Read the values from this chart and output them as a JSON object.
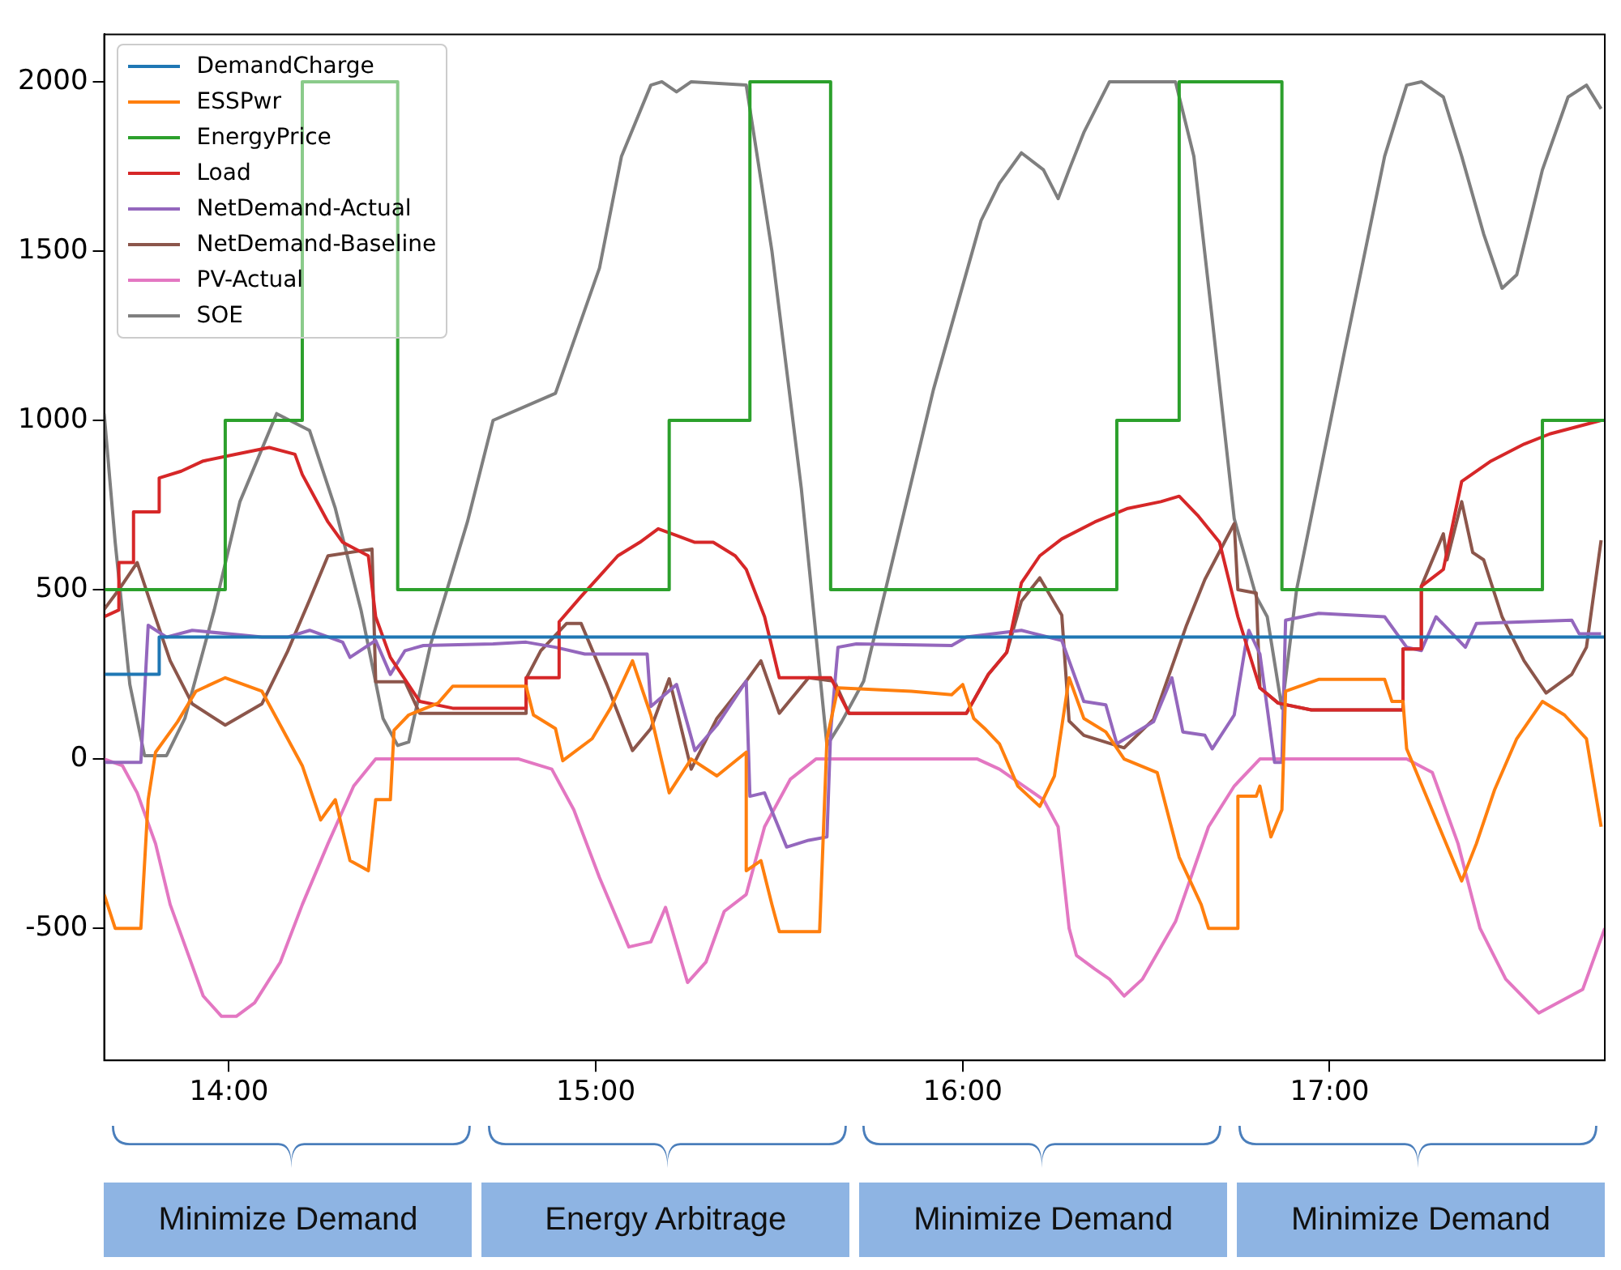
{
  "chart_data": {
    "type": "line",
    "xlim": [
      13.66,
      17.75
    ],
    "ylim": [
      -890,
      2140
    ],
    "xticks": [
      {
        "value": 14,
        "label": "14:00"
      },
      {
        "value": 15,
        "label": "15:00"
      },
      {
        "value": 16,
        "label": "16:00"
      },
      {
        "value": 17,
        "label": "17:00"
      }
    ],
    "yticks": [
      -500,
      0,
      500,
      1000,
      1500,
      2000
    ],
    "grid": false,
    "legend": "top left",
    "marker": "none",
    "line_style": "solid",
    "annotations": [
      "Minimize Demand",
      "Energy Arbitrage",
      "Minimize Demand",
      "Minimize Demand"
    ],
    "series": [
      {
        "name": "DemandCharge",
        "color": "#1f77b4",
        "x": [
          13.66,
          13.81,
          13.81,
          17.75
        ],
        "values": [
          250,
          250,
          360,
          360
        ]
      },
      {
        "name": "ESSPwr",
        "color": "#ff7f0e",
        "x": [
          13.66,
          13.69,
          13.76,
          13.78,
          13.8,
          13.86,
          13.91,
          13.99,
          14.09,
          14.14,
          14.2,
          14.25,
          14.29,
          14.33,
          14.38,
          14.4,
          14.44,
          14.45,
          14.49,
          14.57,
          14.61,
          14.81,
          14.83,
          14.89,
          14.91,
          14.99,
          15.04,
          15.1,
          15.15,
          15.2,
          15.26,
          15.33,
          15.41,
          15.41,
          15.45,
          15.48,
          15.5,
          15.61,
          15.63,
          15.66,
          15.86,
          15.97,
          16.0,
          16.03,
          16.06,
          16.1,
          16.15,
          16.21,
          16.25,
          16.29,
          16.33,
          16.39,
          16.44,
          16.53,
          16.59,
          16.65,
          16.67,
          16.75,
          16.75,
          16.8,
          16.81,
          16.84,
          16.87,
          16.88,
          16.97,
          17.15,
          17.17,
          17.2,
          17.21,
          17.26,
          17.31,
          17.36,
          17.4,
          17.45,
          17.51,
          17.58,
          17.64,
          17.7,
          17.74
        ],
        "values": [
          -400,
          -500,
          -500,
          -120,
          20,
          110,
          200,
          240,
          200,
          100,
          -20,
          -180,
          -120,
          -300,
          -330,
          -120,
          -120,
          85,
          130,
          165,
          215,
          215,
          130,
          90,
          -5,
          60,
          150,
          290,
          130,
          -100,
          0,
          -50,
          20,
          -330,
          -300,
          -430,
          -510,
          -510,
          60,
          210,
          200,
          190,
          220,
          120,
          90,
          45,
          -80,
          -140,
          -50,
          240,
          120,
          80,
          0,
          -40,
          -290,
          -430,
          -500,
          -500,
          -110,
          -110,
          -80,
          -230,
          -150,
          200,
          235,
          235,
          170,
          170,
          30,
          -100,
          -230,
          -360,
          -250,
          -90,
          60,
          170,
          130,
          60,
          -200
        ]
      },
      {
        "name": "EnergyPrice",
        "color": "#2ca02c",
        "x": [
          13.66,
          13.99,
          13.99,
          14.2,
          14.2,
          14.46,
          14.46,
          15.2,
          15.2,
          15.42,
          15.42,
          15.64,
          15.64,
          16.42,
          16.42,
          16.59,
          16.59,
          16.87,
          16.87,
          17.58,
          17.58,
          17.75
        ],
        "values": [
          500,
          500,
          1000,
          1000,
          2000,
          2000,
          500,
          500,
          1000,
          1000,
          2000,
          2000,
          500,
          500,
          1000,
          1000,
          2000,
          2000,
          500,
          500,
          1000,
          1000
        ]
      },
      {
        "name": "Load",
        "color": "#d62728",
        "x": [
          13.66,
          13.7,
          13.7,
          13.74,
          13.74,
          13.81,
          13.81,
          13.87,
          13.93,
          14.02,
          14.11,
          14.18,
          14.2,
          14.23,
          14.27,
          14.31,
          14.38,
          14.4,
          14.44,
          14.52,
          14.61,
          14.81,
          14.81,
          14.9,
          14.9,
          14.96,
          15.01,
          15.06,
          15.12,
          15.17,
          15.22,
          15.27,
          15.32,
          15.38,
          15.41,
          15.46,
          15.5,
          15.64,
          15.69,
          16.01,
          16.07,
          16.12,
          16.16,
          16.21,
          16.27,
          16.36,
          16.45,
          16.54,
          16.59,
          16.64,
          16.7,
          16.75,
          16.81,
          16.86,
          16.95,
          17.2,
          17.2,
          17.25,
          17.25,
          17.31,
          17.36,
          17.44,
          17.53,
          17.6,
          17.74
        ],
        "values": [
          420,
          440,
          580,
          580,
          730,
          730,
          830,
          850,
          880,
          900,
          920,
          900,
          840,
          780,
          700,
          640,
          600,
          420,
          300,
          170,
          150,
          150,
          240,
          240,
          405,
          480,
          540,
          600,
          640,
          680,
          660,
          640,
          640,
          600,
          560,
          420,
          240,
          240,
          135,
          135,
          250,
          315,
          520,
          600,
          650,
          700,
          740,
          760,
          776,
          720,
          640,
          420,
          210,
          165,
          145,
          145,
          325,
          325,
          510,
          560,
          820,
          880,
          930,
          960,
          1000
        ]
      },
      {
        "name": "NetDemand-Actual",
        "color": "#9467bd",
        "x": [
          13.66,
          13.76,
          13.78,
          13.83,
          13.9,
          14.09,
          14.16,
          14.22,
          14.31,
          14.33,
          14.4,
          14.44,
          14.48,
          14.53,
          14.72,
          14.81,
          14.89,
          14.97,
          15.14,
          15.15,
          15.22,
          15.27,
          15.33,
          15.41,
          15.42,
          15.46,
          15.52,
          15.58,
          15.63,
          15.64,
          15.66,
          15.71,
          15.97,
          16.01,
          16.16,
          16.27,
          16.33,
          16.39,
          16.42,
          16.52,
          16.57,
          16.6,
          16.66,
          16.68,
          16.74,
          16.77,
          16.78,
          16.81,
          16.85,
          16.87,
          16.88,
          16.97,
          17.15,
          17.21,
          17.25,
          17.29,
          17.37,
          17.4,
          17.66,
          17.68,
          17.74
        ],
        "values": [
          -10,
          -10,
          395,
          360,
          380,
          360,
          360,
          380,
          345,
          300,
          350,
          250,
          320,
          335,
          340,
          345,
          330,
          310,
          310,
          155,
          220,
          25,
          100,
          230,
          -110,
          -100,
          -260,
          -240,
          -230,
          80,
          330,
          340,
          335,
          360,
          380,
          350,
          170,
          160,
          45,
          110,
          240,
          80,
          70,
          30,
          130,
          330,
          380,
          310,
          -10,
          -10,
          410,
          430,
          420,
          330,
          320,
          420,
          330,
          400,
          410,
          370,
          370
        ]
      },
      {
        "name": "NetDemand-Baseline",
        "color": "#8c564b",
        "x": [
          13.66,
          13.7,
          13.75,
          13.79,
          13.84,
          13.9,
          13.99,
          14.09,
          14.16,
          14.22,
          14.27,
          14.39,
          14.4,
          14.48,
          14.52,
          14.81,
          14.81,
          14.85,
          14.92,
          14.96,
          15.03,
          15.1,
          15.15,
          15.2,
          15.26,
          15.33,
          15.41,
          15.45,
          15.5,
          15.58,
          15.65,
          15.69,
          16.01,
          16.07,
          16.12,
          16.16,
          16.21,
          16.27,
          16.29,
          16.33,
          16.44,
          16.52,
          16.61,
          16.66,
          16.74,
          16.75,
          16.8,
          16.81,
          16.86,
          16.95,
          17.2,
          17.2,
          17.25,
          17.25,
          17.31,
          17.32,
          17.36,
          17.39,
          17.42,
          17.47,
          17.53,
          17.59,
          17.66,
          17.7,
          17.74
        ],
        "values": [
          442,
          500,
          580,
          449,
          290,
          163,
          100,
          163,
          318,
          470,
          600,
          620,
          228,
          228,
          135,
          135,
          237,
          320,
          400,
          400,
          220,
          25,
          90,
          237,
          -30,
          120,
          230,
          290,
          135,
          240,
          230,
          135,
          135,
          250,
          315,
          466,
          535,
          425,
          112,
          70,
          33,
          117,
          395,
          530,
          695,
          500,
          490,
          210,
          165,
          145,
          145,
          325,
          325,
          510,
          665,
          588,
          760,
          610,
          588,
          420,
          290,
          195,
          250,
          330,
          646
        ]
      },
      {
        "name": "PV-Actual",
        "color": "#e377c2",
        "x": [
          13.66,
          13.71,
          13.75,
          13.8,
          13.84,
          13.89,
          13.93,
          13.98,
          14.02,
          14.07,
          14.14,
          14.2,
          14.27,
          14.34,
          14.4,
          14.79,
          14.88,
          14.94,
          15.01,
          15.09,
          15.15,
          15.19,
          15.25,
          15.3,
          15.35,
          15.41,
          15.46,
          15.53,
          15.6,
          16.04,
          16.1,
          16.22,
          16.26,
          16.29,
          16.31,
          16.36,
          16.4,
          16.44,
          16.49,
          16.58,
          16.67,
          16.74,
          16.81,
          17.21,
          17.28,
          17.35,
          17.41,
          17.48,
          17.57,
          17.69,
          17.75
        ],
        "values": [
          0,
          -20,
          -100,
          -250,
          -430,
          -580,
          -700,
          -760,
          -760,
          -720,
          -600,
          -430,
          -250,
          -80,
          0,
          0,
          -30,
          -150,
          -350,
          -555,
          -540,
          -438,
          -660,
          -600,
          -450,
          -400,
          -200,
          -60,
          0,
          0,
          -30,
          -120,
          -200,
          -500,
          -580,
          -620,
          -650,
          -700,
          -650,
          -480,
          -200,
          -80,
          0,
          0,
          -40,
          -250,
          -500,
          -650,
          -750,
          -680,
          -500
        ]
      },
      {
        "name": "SOE",
        "color": "#7f7f7f",
        "x": [
          13.66,
          13.69,
          13.73,
          13.77,
          13.83,
          13.88,
          13.96,
          14.03,
          14.13,
          14.22,
          14.29,
          14.36,
          14.42,
          14.46,
          14.49,
          14.55,
          14.65,
          14.72,
          14.89,
          15.01,
          15.07,
          15.15,
          15.18,
          15.22,
          15.26,
          15.41,
          15.48,
          15.56,
          15.63,
          15.67,
          15.73,
          15.92,
          16.05,
          16.1,
          16.16,
          16.22,
          16.26,
          16.29,
          16.33,
          16.4,
          16.52,
          16.58,
          16.63,
          16.68,
          16.74,
          16.8,
          16.83,
          16.87,
          16.91,
          17.04,
          17.15,
          17.21,
          17.25,
          17.31,
          17.36,
          17.42,
          17.47,
          17.51,
          17.58,
          17.65,
          17.7,
          17.74
        ],
        "values": [
          1020,
          640,
          220,
          10,
          10,
          120,
          440,
          760,
          1020,
          970,
          740,
          440,
          120,
          40,
          50,
          340,
          700,
          1000,
          1080,
          1450,
          1780,
          1990,
          2000,
          1970,
          2000,
          1990,
          1500,
          800,
          40,
          110,
          230,
          1090,
          1590,
          1700,
          1790,
          1740,
          1655,
          1740,
          1850,
          2000,
          2000,
          2000,
          1780,
          1300,
          710,
          480,
          420,
          150,
          500,
          1200,
          1780,
          1990,
          2000,
          1955,
          1780,
          1550,
          1390,
          1430,
          1740,
          1955,
          1990,
          1920
        ]
      }
    ]
  }
}
